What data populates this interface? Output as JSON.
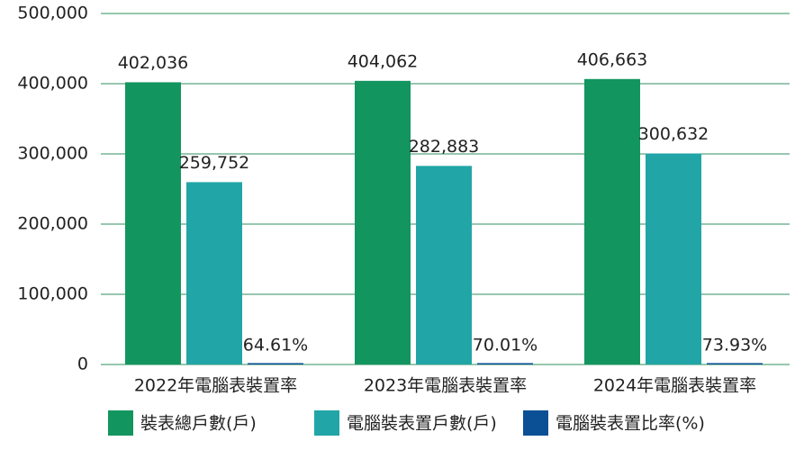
{
  "chart_data": {
    "type": "bar",
    "categories": [
      "2022年電腦表裝置率",
      "2023年電腦表裝置率",
      "2024年電腦表裝置率"
    ],
    "series": [
      {
        "name": "裝表總戶數(戶)",
        "color": "#13955f",
        "values": [
          402036,
          404062,
          406663
        ],
        "value_labels": [
          "402,036",
          "404,062",
          "406,663"
        ]
      },
      {
        "name": "電腦裝表置戶數(戶)",
        "color": "#21a5a6",
        "values": [
          259752,
          282883,
          300632
        ],
        "value_labels": [
          "259,752",
          "282,883",
          "300,632"
        ]
      },
      {
        "name": "電腦裝表置比率(%)",
        "color": "#0b4f95",
        "values": [
          64.61,
          70.01,
          73.93
        ],
        "value_labels": [
          "64.61%",
          "70.01%",
          "73.93%"
        ]
      }
    ],
    "ylim": [
      0,
      500000
    ],
    "yticks": [
      0,
      {
        "value": 100000,
        "label": "100,000"
      },
      {
        "value": 200000,
        "label": "200,000"
      },
      {
        "value": 300000,
        "label": "300,000"
      },
      {
        "value": 400000,
        "label": "400,000"
      },
      {
        "value": 500000,
        "label": "500,000"
      }
    ],
    "grid": true
  }
}
